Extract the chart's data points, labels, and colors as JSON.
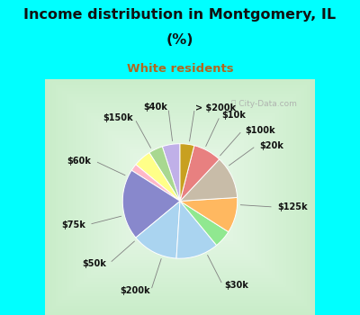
{
  "title_line1": "Income distribution in Montgomery, IL",
  "title_line2": "(%)",
  "subtitle": "White residents",
  "title_color": "#111111",
  "subtitle_color": "#b06820",
  "bg_outer": "#00ffff",
  "labels": [
    "> $200k",
    "$10k",
    "$100k",
    "$20k",
    "$125k",
    "$30k",
    "$200k",
    "$50k",
    "$75k",
    "$60k",
    "$150k",
    "$40k"
  ],
  "values": [
    5,
    4,
    5,
    2,
    20,
    13,
    12,
    5,
    10,
    12,
    8,
    4
  ],
  "colors": [
    "#c0b0e8",
    "#a8d890",
    "#ffff88",
    "#ffb8c8",
    "#8888cc",
    "#aad4f0",
    "#aad4f0",
    "#90e890",
    "#ffb860",
    "#c8bca8",
    "#e88080",
    "#c8a020"
  ],
  "startangle": 90,
  "watermark": "ⓘ City-Data.com"
}
